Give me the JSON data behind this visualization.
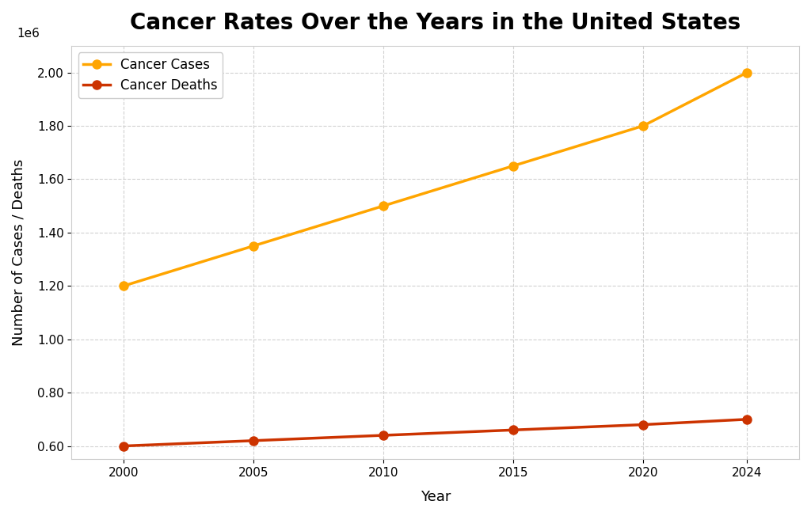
{
  "title": "Cancer Rates Over the Years in the United States",
  "xlabel": "Year",
  "ylabel": "Number of Cases / Deaths",
  "years": [
    2000,
    2005,
    2010,
    2015,
    2020,
    2024
  ],
  "cancer_cases": [
    1200000,
    1350000,
    1500000,
    1650000,
    1800000,
    2000000
  ],
  "cancer_deaths": [
    600000,
    620000,
    640000,
    660000,
    680000,
    700000
  ],
  "cases_color": "#FFA500",
  "deaths_color": "#CC3300",
  "cases_label": "Cancer Cases",
  "deaths_label": "Cancer Deaths",
  "ylim": [
    550000,
    2100000
  ],
  "xlim": [
    1998,
    2026
  ],
  "background_color": "#ffffff",
  "grid_color": "#cccccc",
  "title_fontsize": 20,
  "label_fontsize": 13,
  "legend_fontsize": 12,
  "line_width": 2.5,
  "marker_size": 8
}
